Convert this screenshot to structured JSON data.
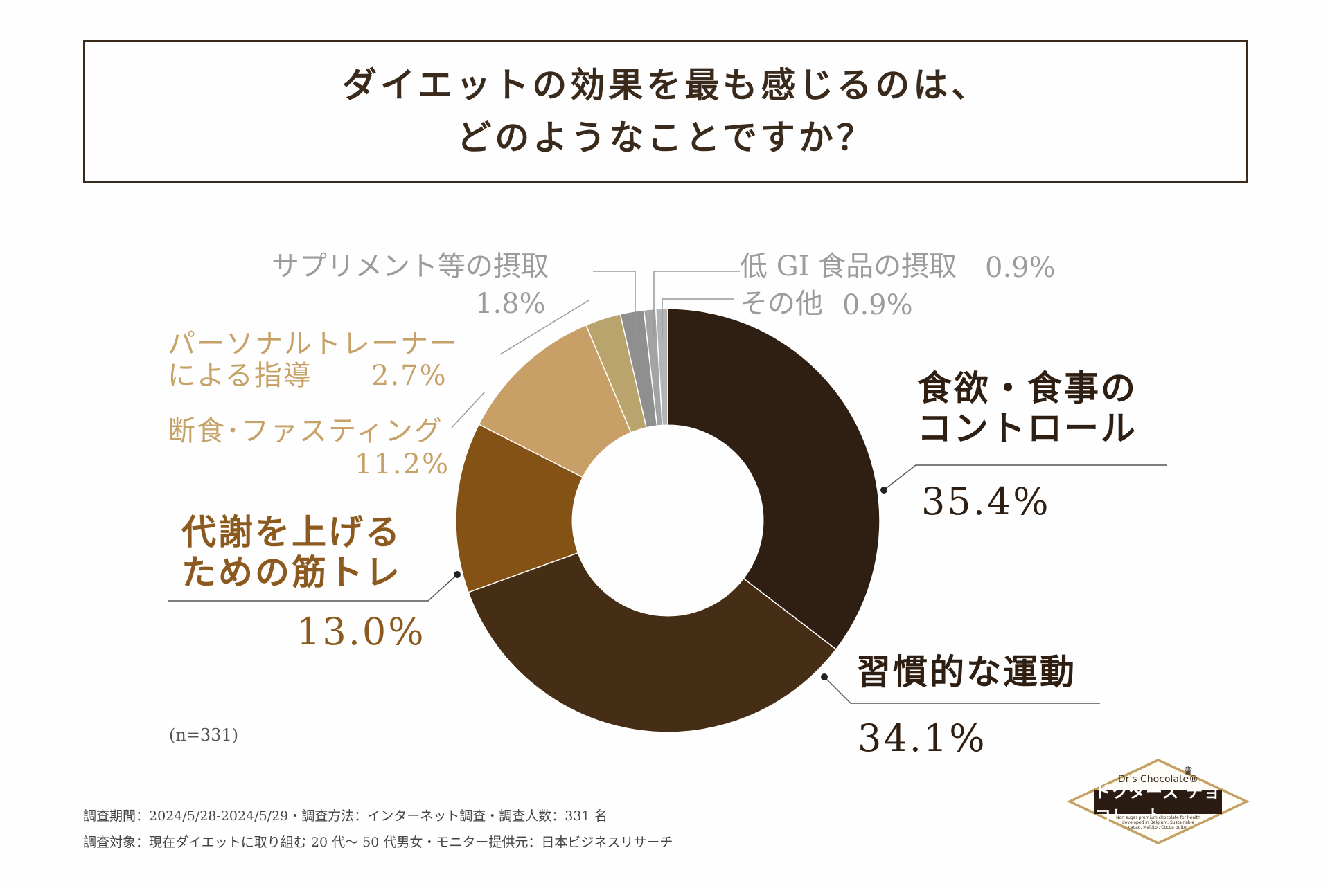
{
  "title": {
    "line1": "ダイエットの効果を最も感じるのは、",
    "line2": "どのようなことですか？"
  },
  "chart_data": {
    "type": "pie",
    "title": "ダイエットの効果を最も感じるのは、どのようなことですか？",
    "categories": [
      "食欲・食事のコントロール",
      "習慣的な運動",
      "代謝を上げるための筋トレ",
      "断食・ファスティング",
      "パーソナルトレーナーによる指導",
      "サプリメント等の摂取",
      "低GI食品の摂取",
      "その他"
    ],
    "values": [
      35.4,
      34.1,
      13.0,
      11.2,
      2.7,
      1.8,
      0.9,
      0.9
    ],
    "colors": [
      "#2e1f12",
      "#462e16",
      "#855216",
      "#c89f66",
      "#b8a46c",
      "#8f8f8f",
      "#a3a3a3",
      "#b4b4b4"
    ],
    "unit": "%",
    "start_angle_deg": 0,
    "direction": "clockwise",
    "inner_radius_ratio": 0.45,
    "sample_size": "(n=331)"
  },
  "labels": {
    "food": {
      "line1": "食欲・食事の",
      "line2": "コントロール",
      "pct": "35.4%"
    },
    "exercise": {
      "line1": "習慣的な運動",
      "pct": "34.1%"
    },
    "muscle": {
      "line1": "代謝を上げる",
      "line2": "ための筋トレ",
      "pct": "13.0%"
    },
    "fasting": {
      "line1": "断食･ファスティング",
      "pct": "11.2%"
    },
    "trainer": {
      "line1": "パーソナルトレーナー",
      "line2": "による指導",
      "pct": "2.7%"
    },
    "supplement": {
      "line1": "サプリメント等の摂取",
      "pct": "1.8%"
    },
    "lowgi": {
      "line1": "低 GI 食品の摂取",
      "pct": "0.9%"
    },
    "other": {
      "line1": "その他",
      "pct": "0.9%"
    }
  },
  "footer": {
    "line1": "調査期間：2024/5/28-2024/5/29・調査方法：インターネット調査・調査人数：331 名",
    "line2": "調査対象：現在ダイエットに取り組む 20 代〜 50 代男女・モニター提供元：日本ビジネスリサーチ"
  },
  "logo": {
    "brand": "Dr's Chocolate®",
    "name": "ドクターズ チョコレート",
    "desc": "Non sugar premium chocolate for health developed in Belgium. Sustainable cacao, Maltitol, Cocoa butter"
  }
}
